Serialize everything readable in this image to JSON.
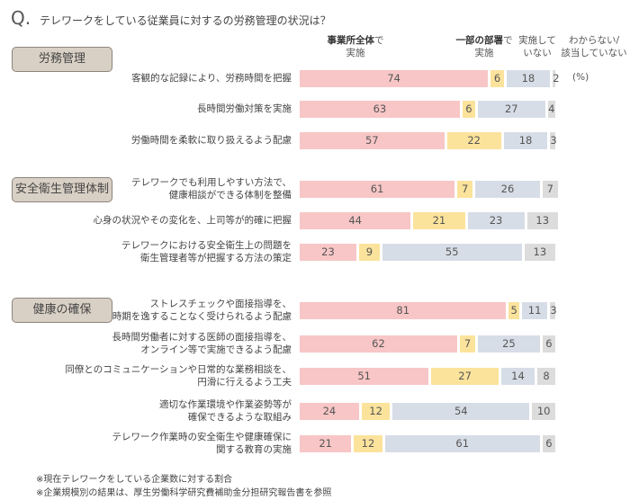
{
  "question_mark": "Q.",
  "question": "テレワークをしている従業員に対するの労務管理の状況は？",
  "unit": "(%)",
  "legend": [
    {
      "bold": "事業所全体",
      "rest": "で",
      "line2": "実施",
      "color": "#f8c6c6"
    },
    {
      "bold": "一部の部署",
      "rest": "で",
      "line2": "実施",
      "color": "#fbe39c"
    },
    {
      "bold": "",
      "rest": "実施して",
      "line2": "いない",
      "color": "#d7dde7"
    },
    {
      "bold": "",
      "rest": "わからない/",
      "line2": "該当していない",
      "color": "#dcdcdc"
    }
  ],
  "footnotes": [
    "※現在テレワークをしている企業数に対する割合",
    "※企業規模別の結果は、厚生労働科学研究費補助金分担研究報告書を参照"
  ],
  "chart_data": {
    "type": "bar",
    "orientation": "horizontal",
    "stacked": true,
    "xlim": [
      0,
      100
    ],
    "series_names_from_legend": true,
    "groups": [
      {
        "name": "労務管理",
        "rows": [
          {
            "label": "客観的な記録により、労務時間を把握",
            "values": [
              74,
              6,
              18,
              2
            ]
          },
          {
            "label": "長時間労働対策を実施",
            "values": [
              63,
              6,
              27,
              4
            ]
          },
          {
            "label": "労働時間を柔軟に取り扱えるよう配慮",
            "values": [
              57,
              22,
              18,
              3
            ]
          }
        ]
      },
      {
        "name": "安全衛生管理体制",
        "rows": [
          {
            "label": "テレワークでも利用しやすい方法で、\n健康相談ができる体制を整備",
            "values": [
              61,
              7,
              26,
              7
            ]
          },
          {
            "label": "心身の状況やその変化を、上司等が的確に把握",
            "values": [
              44,
              21,
              23,
              13
            ]
          },
          {
            "label": "テレワークにおける安全衛生上の問題を\n衛生管理者等が把握する方法の策定",
            "values": [
              23,
              9,
              55,
              13
            ]
          }
        ]
      },
      {
        "name": "健康の確保",
        "rows": [
          {
            "label": "ストレスチェックや面接指導を、\n時期を逸することなく受けられるよう配慮",
            "values": [
              81,
              5,
              11,
              3
            ]
          },
          {
            "label": "長時間労働者に対する医師の面接指導を、\nオンライン等で実施できるよう配慮",
            "values": [
              62,
              7,
              25,
              6
            ]
          },
          {
            "label": "同僚とのコミュニケーションや日常的な業務相談を、\n円滑に行えるよう工夫",
            "values": [
              51,
              27,
              14,
              8
            ]
          },
          {
            "label": "適切な作業環境や作業姿勢等が\n確保できるような取組み",
            "values": [
              24,
              12,
              54,
              10
            ]
          },
          {
            "label": "テレワーク作業時の安全衛生や健康確保に\n関する教育の実施",
            "values": [
              21,
              12,
              61,
              6
            ]
          }
        ]
      }
    ]
  }
}
